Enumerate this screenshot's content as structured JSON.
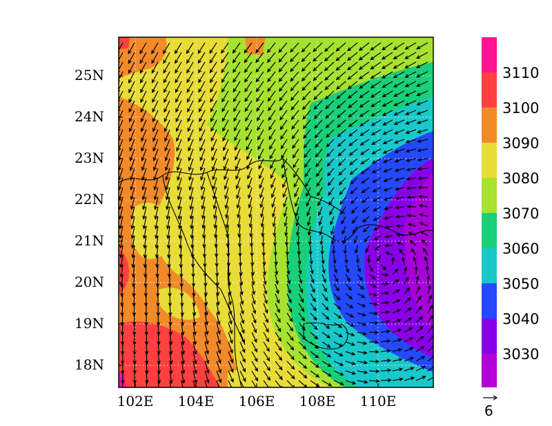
{
  "map": {
    "lat_labels": [
      "25N",
      "24N",
      "23N",
      "22N",
      "21N",
      "20N",
      "19N",
      "18N"
    ],
    "lon_labels": [
      "102E",
      "104E",
      "106E",
      "108E",
      "110E"
    ]
  },
  "colorbar": {
    "labels": [
      "3110",
      "3100",
      "3090",
      "3080",
      "3070",
      "3060",
      "3050",
      "3040",
      "3030"
    ],
    "colors": [
      "#ff1493",
      "#ff4040",
      "#f38a2a",
      "#e8dc38",
      "#a6e22f",
      "#19cf78",
      "#19c9c9",
      "#2549ff",
      "#8a00e6",
      "#b200d6"
    ]
  },
  "reference_vector": {
    "label": "6"
  }
}
